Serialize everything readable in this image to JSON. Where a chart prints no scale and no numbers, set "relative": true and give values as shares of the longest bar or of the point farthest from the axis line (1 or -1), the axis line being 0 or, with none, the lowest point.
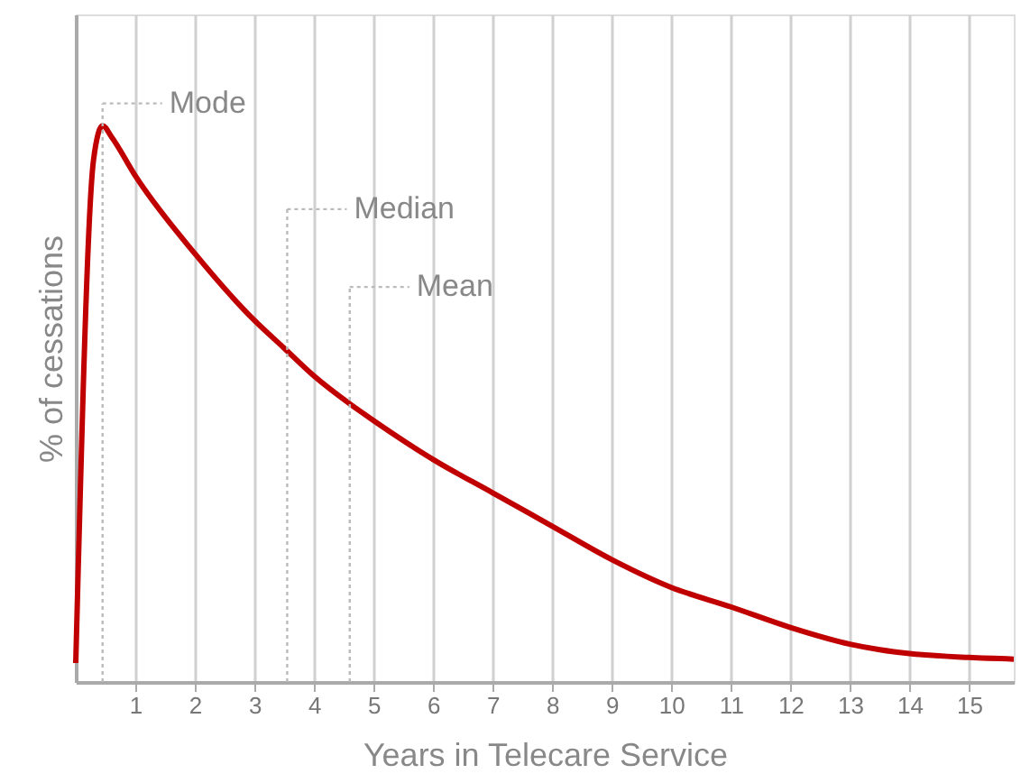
{
  "chart_data": {
    "type": "line",
    "relative": true,
    "xlabel": "Years in Telecare Service",
    "ylabel": "% of cessations",
    "x": [
      0,
      0.3,
      0.45,
      0.6,
      1,
      2,
      3,
      3.5,
      4,
      4.6,
      5,
      6,
      7,
      8,
      9,
      10,
      11,
      12,
      13,
      13.5,
      14,
      15,
      15.75
    ],
    "series": [
      {
        "color": "#c00000",
        "values": [
          0.034,
          0.94,
          1.0,
          0.98,
          0.91,
          0.77,
          0.65,
          0.6,
          0.55,
          0.5,
          0.47,
          0.4,
          0.34,
          0.28,
          0.22,
          0.17,
          0.135,
          0.098,
          0.068,
          0.058,
          0.051,
          0.044,
          0.041
        ]
      }
    ],
    "xlim": [
      0,
      15.75
    ],
    "xticks": [
      1,
      2,
      3,
      4,
      5,
      6,
      7,
      8,
      9,
      10,
      11,
      12,
      13,
      14,
      15
    ],
    "grid": "x",
    "marker": "none",
    "line_style": "solid",
    "ref_lines": [
      {
        "axis": "x",
        "value": 0.45,
        "label": "Mode",
        "color": "#bbbbbb",
        "line_style": "dotted"
      },
      {
        "axis": "x",
        "value": 3.55,
        "label": "Median",
        "color": "#bbbbbb",
        "line_style": "dotted"
      },
      {
        "axis": "x",
        "value": 4.6,
        "label": "Mean",
        "color": "#bbbbbb",
        "line_style": "dotted"
      }
    ]
  }
}
